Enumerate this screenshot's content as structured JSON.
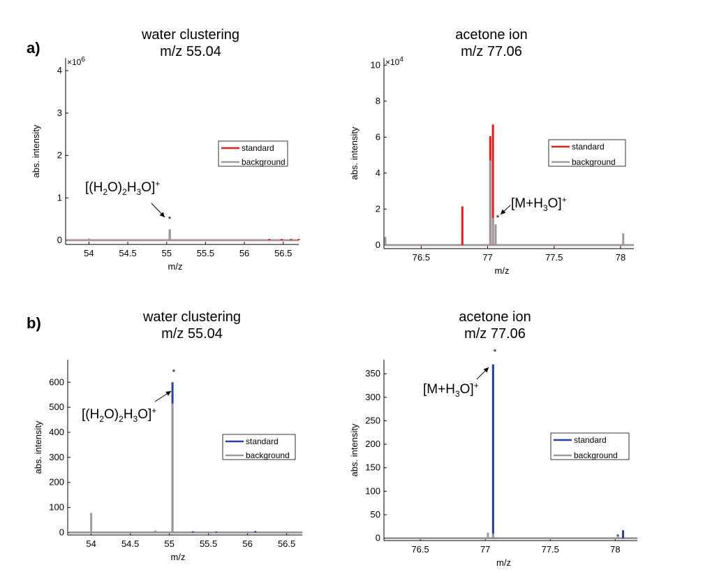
{
  "chart_data": [
    {
      "panel": "a)",
      "type": "bar",
      "title": [
        "water clustering",
        "m/z 55.04"
      ],
      "xlabel": "m/z",
      "ylabel": "abs. intensity",
      "xlim": [
        53.7,
        56.7
      ],
      "ylim": [
        -0.1,
        4.3
      ],
      "y_multiplier": "×10^6",
      "y_multiplier_base": "×10",
      "y_multiplier_exp": "6",
      "xticks": [
        54,
        54.5,
        55,
        55.5,
        56,
        56.5
      ],
      "xtick_labels": [
        "54",
        "54.5",
        "55",
        "55.5",
        "56",
        "56.5"
      ],
      "yticks": [
        0,
        1,
        2,
        3,
        4
      ],
      "ytick_labels": [
        "0",
        "1",
        "2",
        "3",
        "4"
      ],
      "legend": {
        "position": "right",
        "entries": [
          "standard",
          "background"
        ]
      },
      "colors": {
        "standard": "#e02020",
        "background": "#9a9a9a"
      },
      "series": [
        {
          "name": "standard",
          "peaks": [
            [
              55.04,
              0.22
            ],
            [
              56.32,
              0.03
            ],
            [
              56.48,
              0.03
            ],
            [
              56.6,
              0.03
            ],
            [
              56.7,
              0.03
            ]
          ]
        },
        {
          "name": "background",
          "peaks": [
            [
              54.0,
              0.04
            ],
            [
              55.04,
              0.26
            ]
          ]
        }
      ],
      "annotation": {
        "parts": [
          "[(H",
          "2",
          "O)",
          "2",
          "H",
          "3",
          "O]",
          "+"
        ],
        "x": 55.04,
        "star": "*"
      }
    },
    {
      "panel": "",
      "type": "bar",
      "title": [
        "acetone ion",
        "m/z 77.06"
      ],
      "xlabel": "m/z",
      "ylabel": "abs. intensity",
      "xlim": [
        76.22,
        78.1
      ],
      "ylim": [
        -0.2,
        10.4
      ],
      "y_multiplier": "×10^4",
      "y_multiplier_base": "×10",
      "y_multiplier_exp": "4",
      "xticks": [
        76.5,
        77,
        77.5,
        78
      ],
      "xtick_labels": [
        "76.5",
        "77",
        "77.5",
        "78"
      ],
      "yticks": [
        0,
        2,
        4,
        6,
        8,
        10
      ],
      "ytick_labels": [
        "0",
        "2",
        "4",
        "6",
        "8",
        "10"
      ],
      "legend": {
        "position": "right",
        "entries": [
          "standard",
          "background"
        ]
      },
      "colors": {
        "standard": "#e02020",
        "background": "#9a9a9a"
      },
      "series": [
        {
          "name": "standard",
          "peaks": [
            [
              76.81,
              2.15
            ],
            [
              77.02,
              6.05
            ],
            [
              77.04,
              6.7
            ]
          ]
        },
        {
          "name": "background",
          "peaks": [
            [
              76.23,
              0.45
            ],
            [
              77.02,
              4.7
            ],
            [
              77.04,
              1.5
            ],
            [
              77.06,
              1.15
            ],
            [
              78.02,
              0.65
            ]
          ]
        }
      ],
      "annotation": {
        "parts": [
          "[M+H",
          "3",
          "O]",
          "+"
        ],
        "x": 77.06,
        "star": "*"
      }
    },
    {
      "panel": "b)",
      "type": "bar",
      "title": [
        "water clustering",
        "m/z 55.04"
      ],
      "xlabel": "m/z",
      "ylabel": "abs. intensity",
      "xlim": [
        53.7,
        56.7
      ],
      "ylim": [
        -10,
        690
      ],
      "xticks": [
        54,
        54.5,
        55,
        55.5,
        56,
        56.5
      ],
      "xtick_labels": [
        "54",
        "54.5",
        "55",
        "55.5",
        "56",
        "56.5"
      ],
      "yticks": [
        0,
        100,
        200,
        300,
        400,
        500,
        600
      ],
      "ytick_labels": [
        "0",
        "100",
        "200",
        "300",
        "400",
        "500",
        "600"
      ],
      "legend": {
        "position": "right",
        "entries": [
          "standard",
          "background"
        ]
      },
      "colors": {
        "standard": "#2a3f9a",
        "background": "#9a9a9a"
      },
      "series": [
        {
          "name": "standard",
          "peaks": [
            [
              55.04,
              600
            ],
            [
              54.82,
              8
            ],
            [
              55.3,
              5
            ],
            [
              55.6,
              4
            ],
            [
              56.1,
              6
            ]
          ]
        },
        {
          "name": "background",
          "peaks": [
            [
              54.0,
              78
            ],
            [
              54.82,
              8
            ],
            [
              55.04,
              515
            ]
          ]
        }
      ],
      "annotation": {
        "parts": [
          "[(H",
          "2",
          "O)",
          "2",
          "H",
          "3",
          "O]",
          "+"
        ],
        "x": 55.04,
        "star": "*"
      }
    },
    {
      "panel": "",
      "type": "bar",
      "title": [
        "acetone ion",
        "m/z 77.06"
      ],
      "xlabel": "m/z",
      "ylabel": "abs. intensity",
      "xlim": [
        76.22,
        78.17
      ],
      "ylim": [
        -5,
        380
      ],
      "xticks": [
        76.5,
        77,
        77.5,
        78
      ],
      "xtick_labels": [
        "76.5",
        "77",
        "77.5",
        "78"
      ],
      "yticks": [
        0,
        50,
        100,
        150,
        200,
        250,
        300,
        350
      ],
      "ytick_labels": [
        "0",
        "50",
        "100",
        "150",
        "200",
        "250",
        "300",
        "350"
      ],
      "legend": {
        "position": "right",
        "entries": [
          "standard",
          "background"
        ]
      },
      "colors": {
        "standard": "#2a3f9a",
        "background": "#9a9a9a"
      },
      "series": [
        {
          "name": "standard",
          "peaks": [
            [
              77.06,
              370
            ],
            [
              78.02,
              8
            ],
            [
              78.06,
              17
            ]
          ]
        },
        {
          "name": "background",
          "peaks": [
            [
              77.02,
              12
            ],
            [
              77.06,
              10
            ],
            [
              78.02,
              5
            ]
          ]
        }
      ],
      "annotation": {
        "parts": [
          "[M+H",
          "3",
          "O]",
          "+"
        ],
        "x": 77.06,
        "star": "*"
      }
    }
  ]
}
